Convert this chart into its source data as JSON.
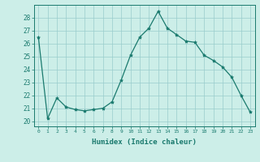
{
  "x": [
    0,
    1,
    2,
    3,
    4,
    5,
    6,
    7,
    8,
    9,
    10,
    11,
    12,
    13,
    14,
    15,
    16,
    17,
    18,
    19,
    20,
    21,
    22,
    23
  ],
  "y": [
    26.5,
    20.2,
    21.8,
    21.1,
    20.9,
    20.8,
    20.9,
    21.0,
    21.5,
    23.2,
    25.1,
    26.5,
    27.2,
    28.5,
    27.2,
    26.7,
    26.2,
    26.1,
    25.1,
    24.7,
    24.2,
    23.4,
    22.0,
    20.7
  ],
  "line_color": "#1a7a6e",
  "marker": "*",
  "marker_color": "#1a7a6e",
  "bg_color": "#cceee8",
  "grid_color": "#99cccc",
  "axis_color": "#1a7a6e",
  "tick_color": "#1a7a6e",
  "xlabel": "Humidex (Indice chaleur)",
  "ylabel_ticks": [
    20,
    21,
    22,
    23,
    24,
    25,
    26,
    27,
    28
  ],
  "ylim": [
    19.6,
    29.0
  ],
  "xlim": [
    -0.5,
    23.5
  ],
  "figsize": [
    3.2,
    2.0
  ],
  "dpi": 100
}
